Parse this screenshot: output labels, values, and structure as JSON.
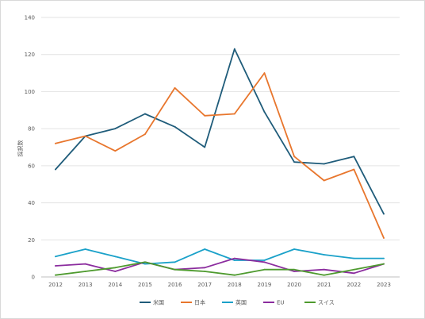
{
  "chart_data": {
    "type": "line",
    "title": "",
    "xlabel": "",
    "ylabel": "採択数",
    "ylim": [
      0,
      140
    ],
    "yticks": [
      0,
      20,
      40,
      60,
      80,
      100,
      120,
      140
    ],
    "grid": true,
    "legend_position": "bottom",
    "x": [
      "2012",
      "2013",
      "2014",
      "2015",
      "2016",
      "2017",
      "2018",
      "2019",
      "2020",
      "2021",
      "2022",
      "2023"
    ],
    "series": [
      {
        "name": "米国",
        "color": "#1f5c7a",
        "values": [
          58,
          76,
          80,
          88,
          81,
          70,
          123,
          89,
          62,
          61,
          65,
          34
        ]
      },
      {
        "name": "日本",
        "color": "#e8762d",
        "values": [
          72,
          76,
          68,
          77,
          102,
          87,
          88,
          110,
          65,
          52,
          58,
          21
        ]
      },
      {
        "name": "英国",
        "color": "#1aa1c9",
        "values": [
          11,
          15,
          11,
          7,
          8,
          15,
          9,
          9,
          15,
          12,
          10,
          10
        ]
      },
      {
        "name": "EU",
        "color": "#8b2c9e",
        "values": [
          6,
          7,
          3,
          8,
          4,
          5,
          10,
          8,
          3,
          4,
          2,
          7
        ]
      },
      {
        "name": "スイス",
        "color": "#4e9a2e",
        "values": [
          1,
          3,
          5,
          8,
          4,
          3,
          1,
          4,
          4,
          1,
          4,
          7
        ]
      }
    ]
  }
}
